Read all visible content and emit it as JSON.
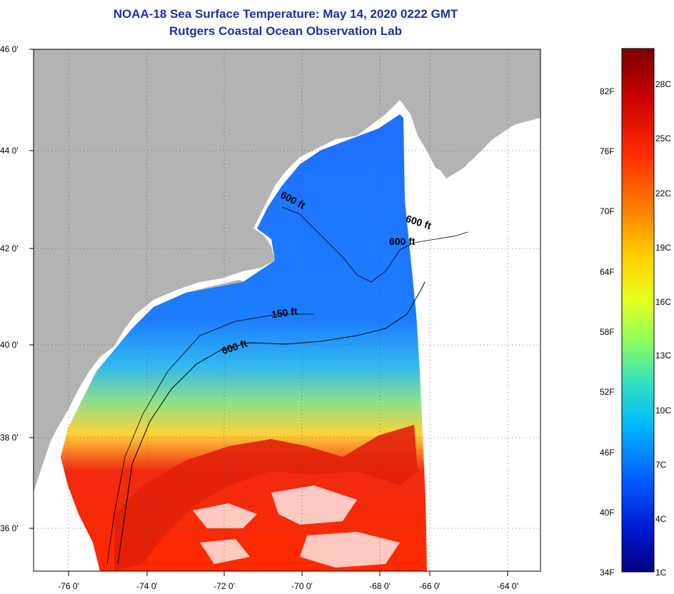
{
  "title_line1": "NOAA-18 Sea Surface Temperature:  May 14, 2020 0222 GMT",
  "title_line2": "Rutgers Coastal Ocean Observation Lab",
  "map": {
    "lat_labels": [
      "46 0'",
      "44 0'",
      "42 0'",
      "40 0'",
      "38 0'",
      "36 0'"
    ],
    "lon_labels": [
      "-76 0'",
      "-74 0'",
      "-72 0'",
      "-70 0'",
      "-68 0'",
      "-66 0'",
      "-64 0'"
    ],
    "contour_labels": [
      "600 ft",
      "600 ft",
      "600 ft",
      "150 ft",
      "600 ft"
    ],
    "colors": {
      "land": "#b3b3b3",
      "no_data": "#ffffff",
      "frame": "#000000"
    }
  },
  "colorbar": {
    "fahrenheit_labels": [
      "82F",
      "76F",
      "70F",
      "64F",
      "58F",
      "52F",
      "46F",
      "40F",
      "34F"
    ],
    "celsius_labels": [
      "28C",
      "25C",
      "22C",
      "19C",
      "16C",
      "13C",
      "10C",
      "7C",
      "4C",
      "1C"
    ],
    "gradient_colors": [
      "#7a0000",
      "#c80000",
      "#ff2a00",
      "#ff7a00",
      "#ffd200",
      "#e6ff20",
      "#8cff60",
      "#30e0c0",
      "#00b8ff",
      "#0060ff",
      "#0018d0",
      "#000080"
    ]
  }
}
